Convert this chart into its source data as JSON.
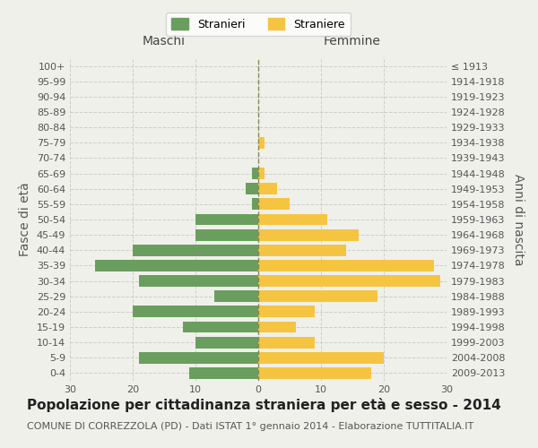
{
  "age_groups": [
    "0-4",
    "5-9",
    "10-14",
    "15-19",
    "20-24",
    "25-29",
    "30-34",
    "35-39",
    "40-44",
    "45-49",
    "50-54",
    "55-59",
    "60-64",
    "65-69",
    "70-74",
    "75-79",
    "80-84",
    "85-89",
    "90-94",
    "95-99",
    "100+"
  ],
  "birth_years": [
    "2009-2013",
    "2004-2008",
    "1999-2003",
    "1994-1998",
    "1989-1993",
    "1984-1988",
    "1979-1983",
    "1974-1978",
    "1969-1973",
    "1964-1968",
    "1959-1963",
    "1954-1958",
    "1949-1953",
    "1944-1948",
    "1939-1943",
    "1934-1938",
    "1929-1933",
    "1924-1928",
    "1919-1923",
    "1914-1918",
    "≤ 1913"
  ],
  "maschi": [
    11,
    19,
    10,
    12,
    20,
    7,
    19,
    26,
    20,
    10,
    10,
    1,
    2,
    1,
    0,
    0,
    0,
    0,
    0,
    0,
    0
  ],
  "femmine": [
    18,
    20,
    9,
    6,
    9,
    19,
    29,
    28,
    14,
    16,
    11,
    5,
    3,
    1,
    0,
    1,
    0,
    0,
    0,
    0,
    0
  ],
  "maschi_color": "#6a9e5e",
  "femmine_color": "#f5c542",
  "title": "Popolazione per cittadinanza straniera per età e sesso - 2014",
  "subtitle": "COMUNE DI CORREZZOLA (PD) - Dati ISTAT 1° gennaio 2014 - Elaborazione TUTTITALIA.IT",
  "xlim": 30,
  "bar_height": 0.75,
  "legend_stranieri": "Stranieri",
  "legend_straniere": "Straniere",
  "xlabel_left": "Maschi",
  "xlabel_right": "Femmine",
  "ylabel_left": "Fasce di età",
  "ylabel_right": "Anni di nascita",
  "background_color": "#f0f0eb",
  "grid_color": "#cccccc",
  "title_fontsize": 11,
  "subtitle_fontsize": 8,
  "tick_fontsize": 8,
  "label_fontsize": 10
}
